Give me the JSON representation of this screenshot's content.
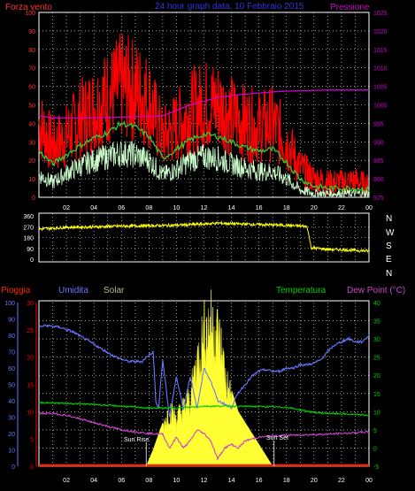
{
  "header": {
    "left_title": "Forza vento",
    "center_title": "24 hour graph data, 10 Febbraio 2015",
    "right_title": "Pressione"
  },
  "colors": {
    "background": "#000000",
    "grid": "#ffffff",
    "wind_gust": "#ff0000",
    "wind_avg": "#33cc33",
    "wind_speed": "#ccffcc",
    "pressure": "#cc00cc",
    "direction": "#ffff00",
    "rain": "#ff2200",
    "humidity": "#6677ff",
    "solar": "#ffff33",
    "temperature": "#00cc00",
    "dew_point": "#cc44cc",
    "left_axis_wind": "#ff3333",
    "right_axis_pressure": "#cc00cc",
    "rain_axis": "#ff0000",
    "hum_axis": "#6677ff",
    "temp_axis": "#00cc00",
    "text_white": "#ffffff",
    "solar_label": "#bbbb88"
  },
  "direction_axis": {
    "letters": [
      "N",
      "W",
      "S",
      "E",
      "N"
    ],
    "ticks": [
      "360",
      "270",
      "180",
      "90",
      "0"
    ]
  },
  "lower_labels": {
    "rain": "Pioggia",
    "humidity": "Umidita",
    "solar": "Solar",
    "temperature": "Temperatura",
    "dew_point": "Dew Point (°C)",
    "sun_rise": "Sun Rise",
    "sun_set": "Sun Set"
  },
  "chart_data": [
    {
      "type": "line",
      "name": "wind-pressure",
      "x_tick_labels": [
        "02",
        "04",
        "06",
        "08",
        "10",
        "12",
        "14",
        "16",
        "18",
        "20",
        "22",
        "00"
      ],
      "left_axis": {
        "ticks": [
          "0",
          "10",
          "20",
          "30",
          "40",
          "50",
          "60",
          "70",
          "80",
          "90",
          "100"
        ],
        "ylim": [
          0,
          100
        ]
      },
      "right_axis": {
        "ticks": [
          "975",
          "980",
          "985",
          "990",
          "995",
          "1000",
          "1005",
          "1010",
          "1015",
          "1020",
          "1025"
        ],
        "ylim": [
          975,
          1025
        ]
      },
      "x_hours": [
        0,
        1,
        2,
        3,
        4,
        5,
        6,
        7,
        8,
        9,
        10,
        11,
        12,
        13,
        14,
        15,
        16,
        17,
        18,
        19,
        20,
        21,
        22,
        23,
        24
      ],
      "series": [
        {
          "key": "gust",
          "values": [
            40,
            28,
            33,
            42,
            48,
            54,
            60,
            58,
            52,
            32,
            38,
            46,
            50,
            50,
            44,
            40,
            38,
            40,
            30,
            16,
            10,
            8,
            8,
            9,
            6
          ]
        },
        {
          "key": "avg",
          "values": [
            25,
            18,
            23,
            28,
            32,
            35,
            40,
            38,
            33,
            21,
            26,
            31,
            34,
            33,
            30,
            27,
            25,
            26,
            19,
            10,
            6,
            5,
            5,
            5,
            4
          ]
        },
        {
          "key": "speed",
          "values": [
            12,
            8,
            13,
            17,
            20,
            22,
            24,
            23,
            20,
            12,
            15,
            20,
            22,
            21,
            18,
            16,
            14,
            14,
            10,
            4,
            2,
            2,
            2,
            2,
            2
          ]
        },
        {
          "key": "pressure",
          "values": [
            997,
            996.5,
            996.4,
            996.4,
            996.5,
            996.6,
            996.7,
            996.8,
            996.8,
            997,
            998.5,
            1000,
            1001,
            1002,
            1002.5,
            1002.9,
            1003.2,
            1003.5,
            1003.7,
            1003.8,
            1003.9,
            1004.0,
            1004.0,
            1004.0,
            1004.0
          ]
        }
      ]
    },
    {
      "type": "line",
      "name": "wind-direction",
      "ylim": [
        0,
        360
      ],
      "x_hours": [
        0,
        2,
        4,
        6,
        8,
        10,
        12,
        13,
        14,
        16,
        18,
        19.5,
        19.8,
        21,
        22,
        23,
        24
      ],
      "values": [
        250,
        265,
        268,
        275,
        278,
        282,
        292,
        300,
        295,
        288,
        282,
        272,
        95,
        82,
        78,
        74,
        68
      ]
    },
    {
      "type": "line",
      "name": "rain-humidity-solar-temp",
      "x_tick_labels": [
        "02",
        "04",
        "06",
        "08",
        "10",
        "12",
        "14",
        "16",
        "18",
        "20",
        "22",
        "00"
      ],
      "rain_axis": {
        "ticks": [
          "0",
          "5",
          "10",
          "15",
          "20",
          "25",
          "30"
        ],
        "ylim": [
          0,
          30
        ]
      },
      "humidity_axis": {
        "ticks": [
          "0",
          "10",
          "20",
          "30",
          "40",
          "50",
          "60",
          "70",
          "80",
          "90",
          "100"
        ],
        "ylim": [
          0,
          100
        ]
      },
      "temp_axis": {
        "ticks": [
          "-5",
          "0",
          "5",
          "10",
          "15",
          "20",
          "25",
          "30",
          "35",
          "40"
        ],
        "ylim": [
          -5,
          40
        ]
      },
      "series": [
        {
          "key": "humidity",
          "x": [
            0,
            0.5,
            1.5,
            2.5,
            3.5,
            4.5,
            5.5,
            6.5,
            7.5,
            8,
            8.3,
            8.5,
            8.7,
            9,
            9.5,
            10,
            10.5,
            11,
            11.5,
            12,
            12.5,
            13,
            13.5,
            14,
            14.5,
            15,
            15.5,
            16,
            16.5,
            17,
            17.5,
            18,
            18.5,
            19,
            19.5,
            20,
            20.5,
            21,
            21.5,
            22,
            22.5,
            23,
            23.5,
            24
          ],
          "values": [
            85,
            86,
            85,
            82,
            77,
            72,
            67,
            64,
            64,
            68,
            70,
            40,
            35,
            65,
            30,
            55,
            35,
            55,
            35,
            60,
            52,
            40,
            38,
            36,
            45,
            50,
            55,
            58,
            59,
            58,
            58,
            60,
            60,
            62,
            62,
            63,
            65,
            70,
            74,
            76,
            78,
            76,
            76,
            80
          ]
        },
        {
          "key": "temperature",
          "x": [
            0,
            2,
            4,
            6,
            8,
            10,
            12,
            14,
            16,
            18,
            20,
            21,
            22,
            23,
            24
          ],
          "values": [
            12.5,
            12.3,
            12,
            11.5,
            11,
            11,
            11.5,
            11.5,
            11.4,
            11.2,
            9.8,
            9.5,
            9.4,
            9.2,
            9
          ]
        },
        {
          "key": "dew_point",
          "x": [
            0,
            1,
            2,
            3,
            4,
            5,
            6,
            7,
            8,
            9,
            9.5,
            10,
            10.5,
            11,
            11.5,
            12,
            12.5,
            13,
            13.5,
            14,
            14.5,
            15,
            16,
            17,
            18,
            19,
            20,
            21,
            22,
            23,
            24
          ],
          "values": [
            9.5,
            9.5,
            9,
            8,
            7,
            6,
            5,
            4.5,
            4,
            3.8,
            0,
            3,
            0,
            2,
            5,
            4,
            2,
            -3,
            0,
            1,
            0,
            2,
            3,
            3.3,
            3.5,
            3.6,
            3.7,
            3.8,
            4,
            4.2,
            4.5
          ]
        },
        {
          "key": "solar",
          "x": [
            7.8,
            8.3,
            9,
            9.5,
            10,
            10.5,
            11,
            11.5,
            12,
            12.5,
            13,
            13.3,
            13.6,
            14,
            14.5,
            15,
            15.5,
            16,
            16.5,
            17
          ],
          "values": [
            0,
            3,
            8,
            12,
            10,
            12,
            14,
            22,
            28,
            30,
            28,
            24,
            18,
            14,
            10,
            8,
            6,
            4,
            2,
            0
          ]
        },
        {
          "key": "rain",
          "x": [
            0,
            24
          ],
          "values": [
            0,
            0
          ]
        }
      ],
      "sun_rise_hour": 7.8,
      "sun_set_hour": 17.1
    }
  ]
}
